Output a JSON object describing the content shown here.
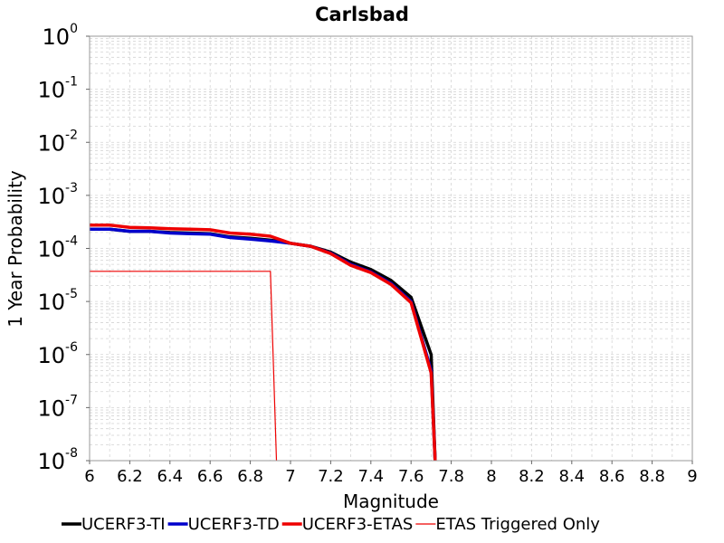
{
  "chart_data": {
    "type": "line",
    "title": "Carlsbad",
    "xlabel": "Magnitude",
    "ylabel": "1 Year Probability",
    "xlim": [
      6,
      9
    ],
    "ylim": [
      1e-08,
      1
    ],
    "y_scale": "log",
    "x_ticks": [
      "6",
      "6.2",
      "6.4",
      "6.6",
      "6.8",
      "7",
      "7.2",
      "7.4",
      "7.6",
      "7.8",
      "8",
      "8.2",
      "8.4",
      "8.6",
      "8.8",
      "9"
    ],
    "y_ticks": [
      {
        "base": "10",
        "exp": "0"
      },
      {
        "base": "10",
        "exp": "-1"
      },
      {
        "base": "10",
        "exp": "-2"
      },
      {
        "base": "10",
        "exp": "-3"
      },
      {
        "base": "10",
        "exp": "-4"
      },
      {
        "base": "10",
        "exp": "-5"
      },
      {
        "base": "10",
        "exp": "-6"
      },
      {
        "base": "10",
        "exp": "-7"
      },
      {
        "base": "10",
        "exp": "-8"
      }
    ],
    "grid": true,
    "legend_position": "bottom",
    "series": [
      {
        "name": "UCERF3-TI",
        "color": "#000000",
        "width": 3.5,
        "x": [
          6.0,
          6.1,
          6.2,
          6.3,
          6.4,
          6.5,
          6.6,
          6.7,
          6.8,
          6.9,
          7.0,
          7.1,
          7.2,
          7.3,
          7.4,
          7.5,
          7.6,
          7.7,
          7.72
        ],
        "y": [
          0.00023,
          0.00023,
          0.00021,
          0.00021,
          0.0002,
          0.000195,
          0.00019,
          0.000165,
          0.000155,
          0.000143,
          0.000125,
          0.00011,
          8.5e-05,
          5.5e-05,
          4e-05,
          2.5e-05,
          1.2e-05,
          1e-06,
          1e-08
        ]
      },
      {
        "name": "UCERF3-TD",
        "color": "#0000cc",
        "width": 3.5,
        "x": [
          6.0,
          6.1,
          6.2,
          6.3,
          6.4,
          6.5,
          6.6,
          6.7,
          6.8,
          6.9,
          7.0,
          7.1,
          7.2,
          7.3,
          7.4,
          7.5,
          7.6,
          7.7,
          7.72
        ],
        "y": [
          0.00023,
          0.00023,
          0.00021,
          0.00021,
          0.000195,
          0.00019,
          0.000185,
          0.00016,
          0.00015,
          0.000138,
          0.000125,
          0.00011,
          8.2e-05,
          5e-05,
          3.6e-05,
          2.2e-05,
          1e-05,
          5e-07,
          1e-08
        ]
      },
      {
        "name": "UCERF3-ETAS",
        "color": "#ee0000",
        "width": 3.5,
        "x": [
          6.0,
          6.1,
          6.2,
          6.3,
          6.4,
          6.5,
          6.6,
          6.7,
          6.8,
          6.9,
          7.0,
          7.1,
          7.2,
          7.3,
          7.4,
          7.5,
          7.6,
          7.7,
          7.72
        ],
        "y": [
          0.000275,
          0.000275,
          0.00025,
          0.000245,
          0.000235,
          0.00023,
          0.000225,
          0.000195,
          0.000185,
          0.00017,
          0.000125,
          0.00011,
          8e-05,
          4.8e-05,
          3.5e-05,
          2.1e-05,
          9.5e-06,
          4.5e-07,
          1e-08
        ]
      },
      {
        "name": "ETAS Triggered Only",
        "color": "#ee0000",
        "width": 1.2,
        "x": [
          6.0,
          6.9,
          6.93
        ],
        "y": [
          3.7e-05,
          3.7e-05,
          1e-08
        ]
      }
    ]
  }
}
